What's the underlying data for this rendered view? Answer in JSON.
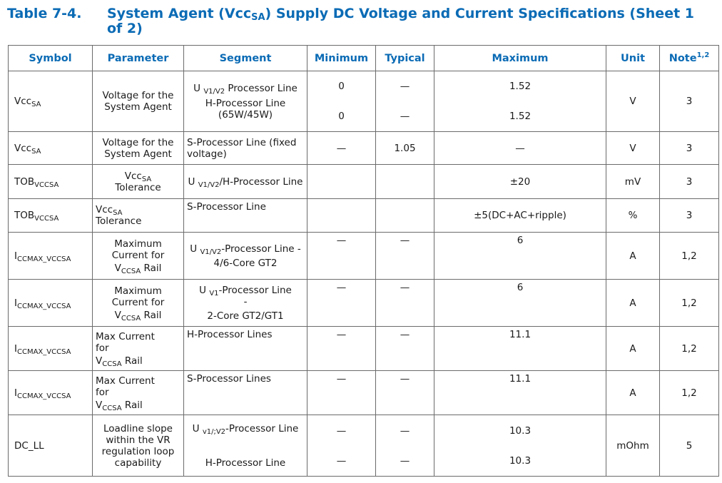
{
  "caption": {
    "number": "Table 7-4.",
    "title_pre": "System Agent (Vcc",
    "title_sub": "SA",
    "title_post": ") Supply DC Voltage and Current Specifications (Sheet 1 of 2)"
  },
  "header": {
    "symbol": "Symbol",
    "parameter": "Parameter",
    "segment": "Segment",
    "minimum": "Minimum",
    "typical": "Typical",
    "maximum": "Maximum",
    "unit": "Unit",
    "note": "Note",
    "note_sup": "1,2"
  },
  "rows": [
    {
      "sym_main": "Vcc",
      "sym_sub": "SA",
      "param": "Voltage for the System Agent",
      "seg1_pre": "U ",
      "seg1_sub": "V1/V2",
      "seg1_post": " Processor Line",
      "seg2": "H-Processor Line (65W/45W)",
      "min1": "0",
      "min2": "0",
      "typ1": "—",
      "typ2": "—",
      "max1": "1.52",
      "max2": "1.52",
      "unit": "V",
      "note": "3"
    },
    {
      "sym_main": "Vcc",
      "sym_sub": "SA",
      "param": "Voltage for the System Agent",
      "seg": "S-Processor Line (fixed voltage)",
      "min": "—",
      "typ": "1.05",
      "max": "—",
      "unit": "V",
      "note": "3"
    },
    {
      "sym_main": "TOB",
      "sym_sub": "VCCSA",
      "param_main": "Vcc",
      "param_sub": "SA",
      "param_line2": "Tolerance",
      "seg_pre": "U ",
      "seg_sub": "V1/V2",
      "seg_post": "/H-Processor Line",
      "min": "",
      "typ": "",
      "max": "±20",
      "unit": "mV",
      "note": "3"
    },
    {
      "sym_main": "TOB",
      "sym_sub": "VCCSA",
      "param_main": "Vcc",
      "param_sub": "SA",
      "param_line2": "Tolerance",
      "seg": "S-Processor Line",
      "min": "",
      "typ": "",
      "max": "±5(DC+AC+ripple)",
      "unit": "%",
      "note": "3"
    },
    {
      "sym_main": "I",
      "sym_sub": "CCMAX_VCCSA",
      "param_l1": "Maximum",
      "param_l2": "Current for",
      "param_l3_main": "V",
      "param_l3_sub": "CCSA",
      "param_l3_post": " Rail",
      "seg_pre": "U ",
      "seg_sub": "V1/V2",
      "seg_post": "-Processor Line -",
      "seg_line2": "4/6-Core GT2",
      "min": "—",
      "typ": "—",
      "max": "6",
      "unit": "A",
      "note": "1,2"
    },
    {
      "sym_main": "I",
      "sym_sub": "CCMAX_VCCSA",
      "param_l1": "Maximum",
      "param_l2": "Current for",
      "param_l3_main": "V",
      "param_l3_sub": "CCSA",
      "param_l3_post": " Rail",
      "seg_pre": "U ",
      "seg_sub": "V1",
      "seg_post": "-Processor Line",
      "seg_dash": "-",
      "seg_line2": "2-Core GT2/GT1",
      "min": "—",
      "typ": "—",
      "max": "6",
      "unit": "A",
      "note": "1,2"
    },
    {
      "sym_main": "I",
      "sym_sub": "CCMAX_VCCSA",
      "param_l1": "Max Current",
      "param_l2": "for",
      "param_l3_main": "V",
      "param_l3_sub": "CCSA",
      "param_l3_post": " Rail",
      "seg": "H-Processor Lines",
      "min": "—",
      "typ": "—",
      "max": "11.1",
      "unit": "A",
      "note": "1,2"
    },
    {
      "sym_main": "I",
      "sym_sub": "CCMAX_VCCSA",
      "param_l1": "Max Current",
      "param_l2": "for",
      "param_l3_main": "V",
      "param_l3_sub": "CCSA",
      "param_l3_post": " Rail",
      "seg": "S-Processor Lines",
      "min": "—",
      "typ": "—",
      "max": "11.1",
      "unit": "A",
      "note": "1,2"
    },
    {
      "sym": "DC_LL",
      "param": "Loadline slope within the VR regulation loop capability",
      "seg1_pre": "U ",
      "seg1_sub": "v1/;V2",
      "seg1_post": "-Processor Line",
      "seg2": "H-Processor Line",
      "min1": "—",
      "min2": "—",
      "typ1": "—",
      "typ2": "—",
      "max1": "10.3",
      "max2": "10.3",
      "unit": "mOhm",
      "note": "5"
    }
  ]
}
